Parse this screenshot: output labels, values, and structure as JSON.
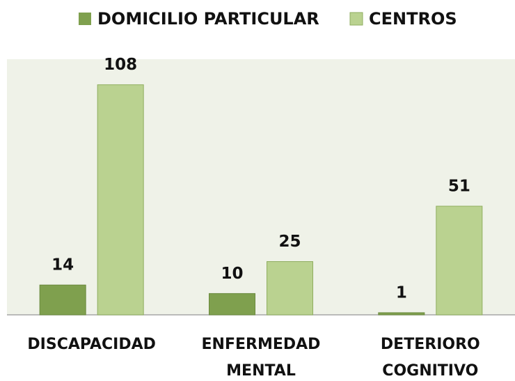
{
  "chart_data": {
    "type": "bar",
    "categories": [
      "DISCAPACIDAD",
      "ENFERMEDAD MENTAL",
      "DETERIORO COGNITIVO"
    ],
    "series": [
      {
        "name": "DOMICILIO PARTICULAR",
        "color": "#7fa04e",
        "values": [
          14,
          10,
          1
        ]
      },
      {
        "name": "CENTROS",
        "color": "#bad290",
        "values": [
          108,
          25,
          51
        ]
      }
    ],
    "ylim": [
      0,
      120
    ],
    "legend": "top"
  }
}
